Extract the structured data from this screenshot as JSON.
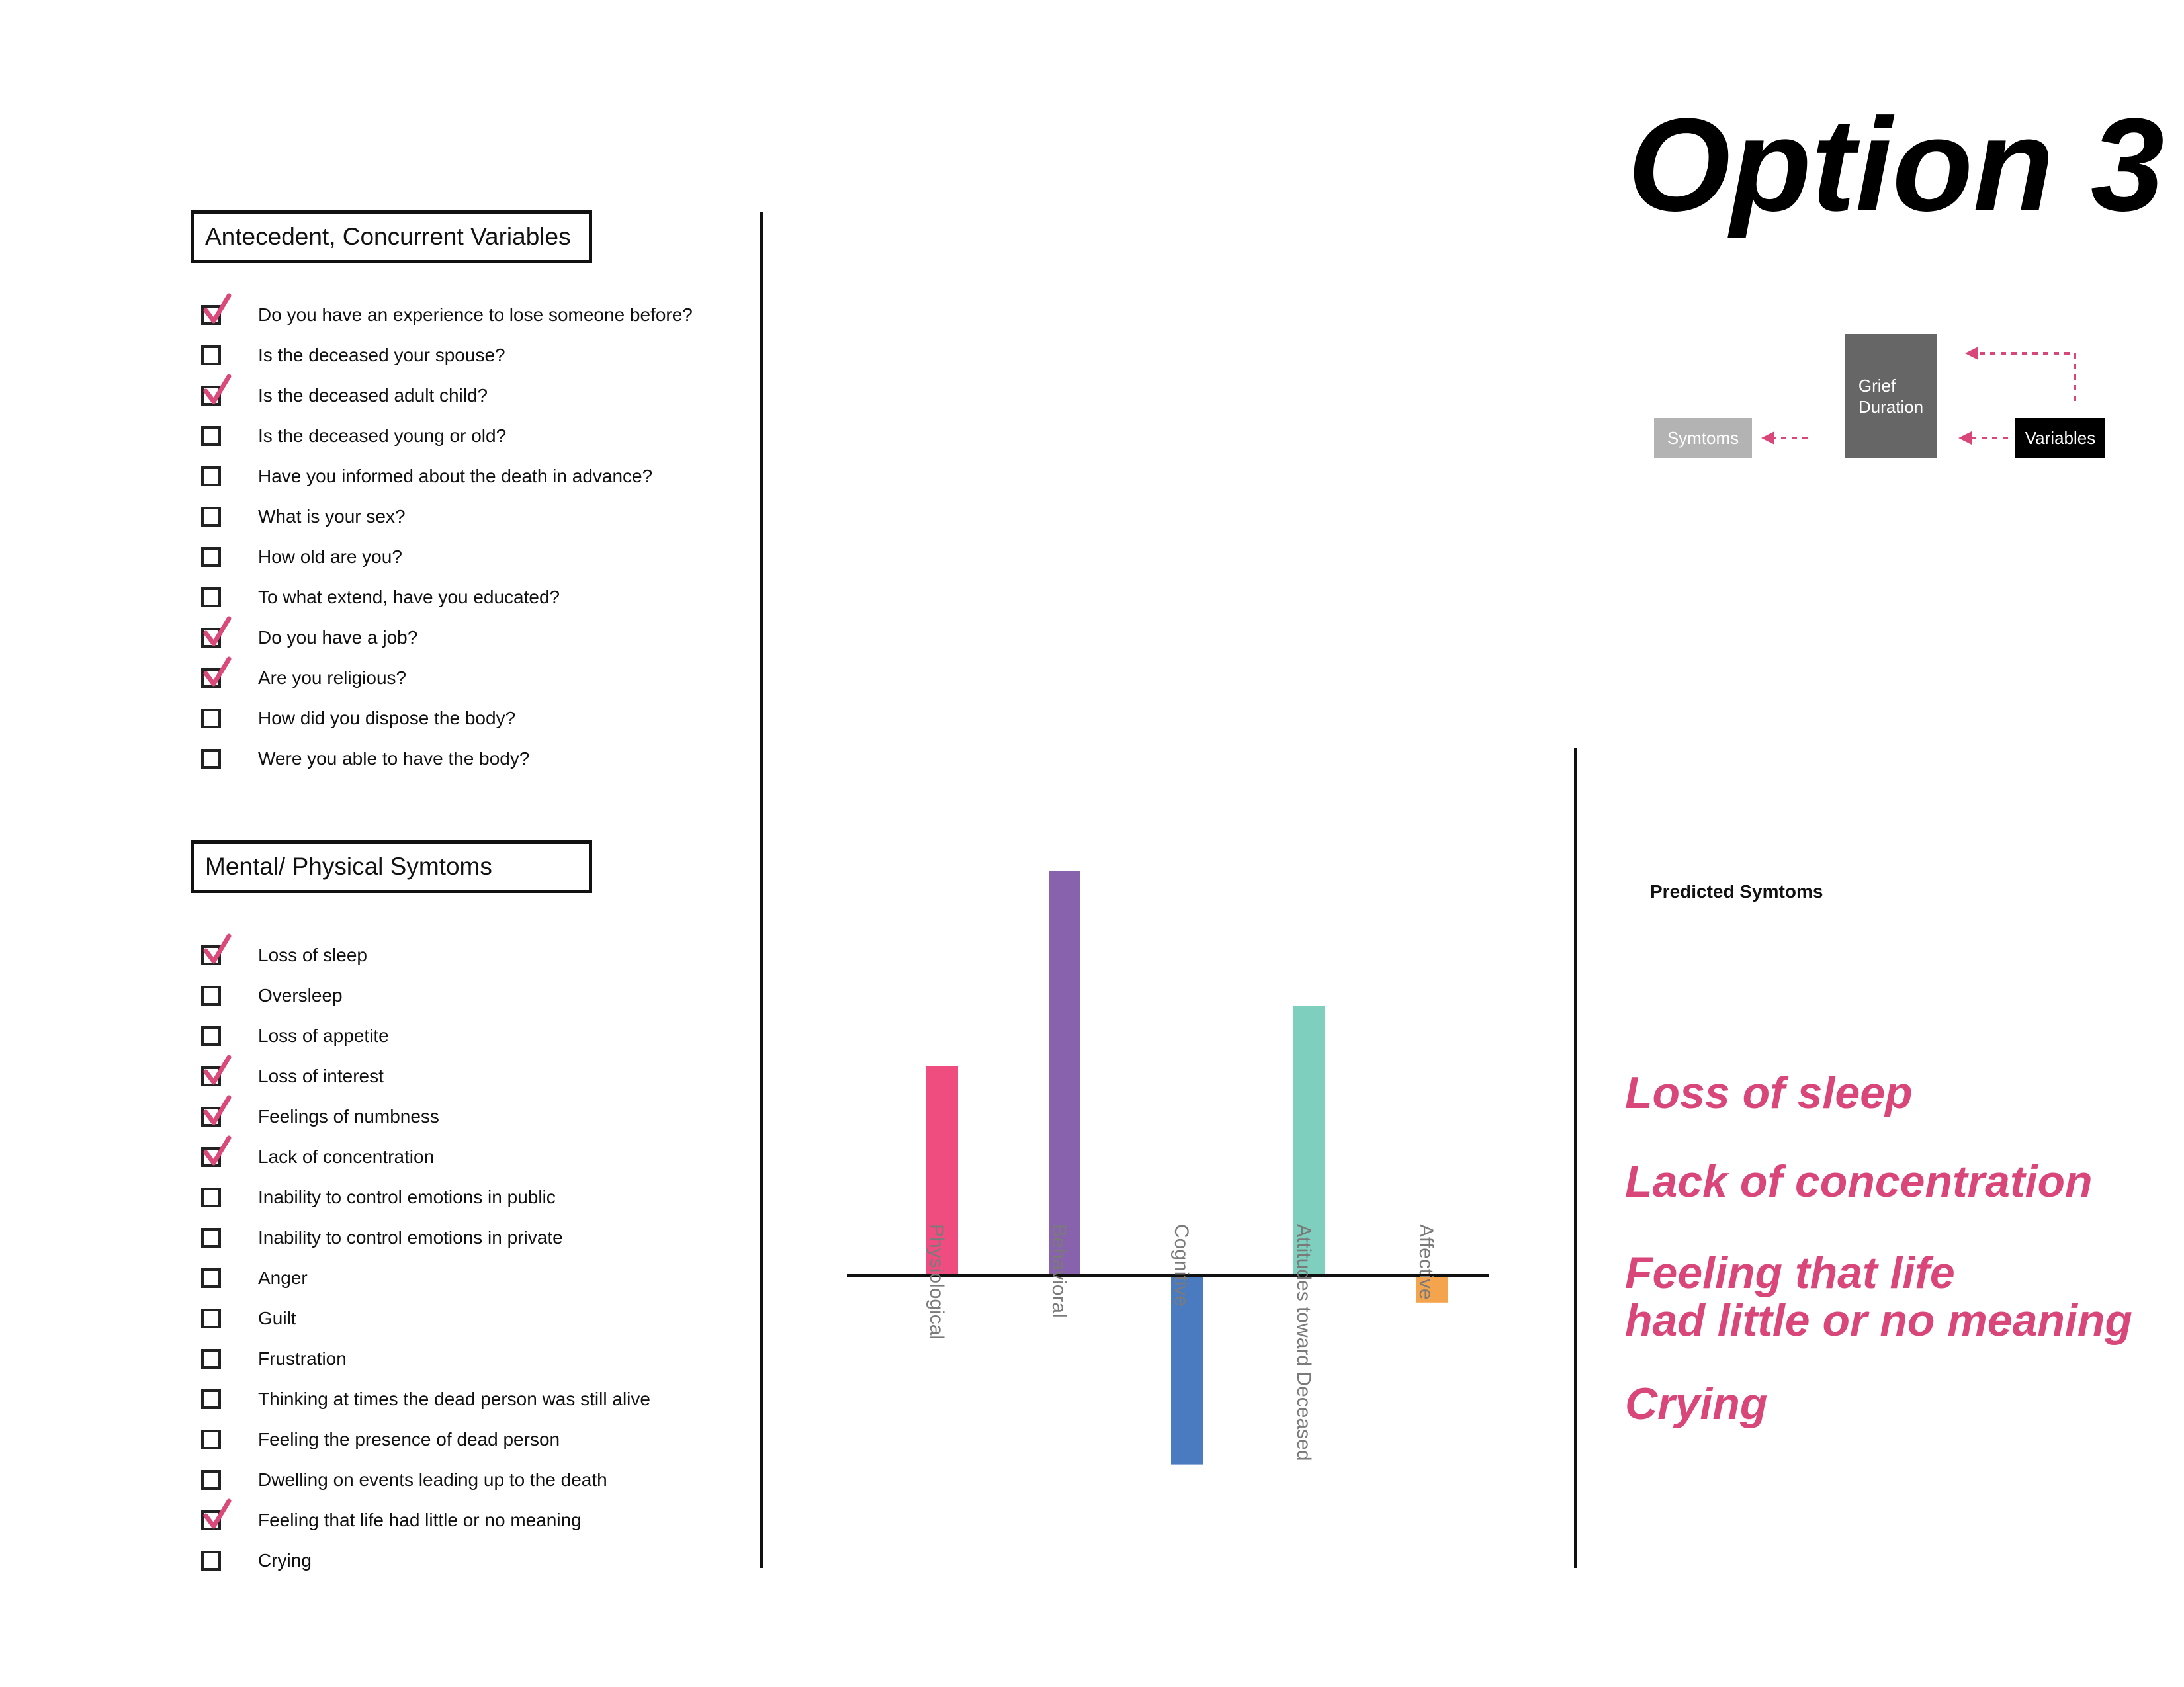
{
  "title": "Option 3",
  "colors": {
    "accent": "#d9467a",
    "check": "#d94a7a",
    "diagram_symptoms": "#b3b3b3",
    "diagram_duration": "#666666",
    "diagram_variables": "#000000"
  },
  "antecedent": {
    "heading": "Antecedent, Concurrent Variables",
    "items": [
      {
        "label": "Do you have an experience to lose someone before?",
        "checked": true
      },
      {
        "label": "Is the deceased your spouse?",
        "checked": false
      },
      {
        "label": "Is the deceased adult child?",
        "checked": true
      },
      {
        "label": "Is the deceased young or old?",
        "checked": false
      },
      {
        "label": "Have you informed about the death in advance?",
        "checked": false
      },
      {
        "label": "What is your sex?",
        "checked": false
      },
      {
        "label": "How old are you?",
        "checked": false
      },
      {
        "label": "To what extend, have you educated?",
        "checked": false
      },
      {
        "label": "Do you have a job?",
        "checked": true
      },
      {
        "label": "Are you religious?",
        "checked": true
      },
      {
        "label": "How did you dispose the body?",
        "checked": false
      },
      {
        "label": "Were you able to have the body?",
        "checked": false
      }
    ]
  },
  "symptoms": {
    "heading": "Mental/ Physical Symtoms",
    "items": [
      {
        "label": "Loss of sleep",
        "checked": true
      },
      {
        "label": "Oversleep",
        "checked": false
      },
      {
        "label": "Loss of appetite",
        "checked": false
      },
      {
        "label": "Loss of interest",
        "checked": true
      },
      {
        "label": "Feelings of numbness",
        "checked": true
      },
      {
        "label": "Lack of concentration",
        "checked": true
      },
      {
        "label": "Inability to control emotions in public",
        "checked": false
      },
      {
        "label": "Inability to control emotions in private",
        "checked": false
      },
      {
        "label": "Anger",
        "checked": false
      },
      {
        "label": "Guilt",
        "checked": false
      },
      {
        "label": "Frustration",
        "checked": false
      },
      {
        "label": "Thinking at times the dead person was still alive",
        "checked": false
      },
      {
        "label": "Feeling the presence of dead person",
        "checked": false
      },
      {
        "label": "Dwelling on events leading up to the death",
        "checked": false
      },
      {
        "label": "Feeling that life had little or no meaning",
        "checked": true
      },
      {
        "label": "Crying",
        "checked": false
      }
    ]
  },
  "diagram": {
    "symptoms_label": "Symtoms",
    "duration_label": "Grief\nDuration",
    "variables_label": "Variables"
  },
  "chart_data": {
    "type": "bar",
    "categories": [
      "Physiological",
      "Behavioral",
      "Cognitive",
      "Attitudes toward Deceased",
      "Affective"
    ],
    "values": [
      31,
      60,
      -28,
      40,
      -4
    ],
    "colors": [
      "#ef4d80",
      "#8862ad",
      "#4a7abf",
      "#7ecfbd",
      "#f4a44c"
    ],
    "ylim": [
      -30,
      60
    ],
    "title": "",
    "xlabel": "",
    "ylabel": ""
  },
  "predicted": {
    "heading": "Predicted Symtoms",
    "items": [
      "Loss of sleep",
      "Lack of concentration",
      "Feeling that life\nhad little or no meaning",
      "Crying"
    ]
  }
}
